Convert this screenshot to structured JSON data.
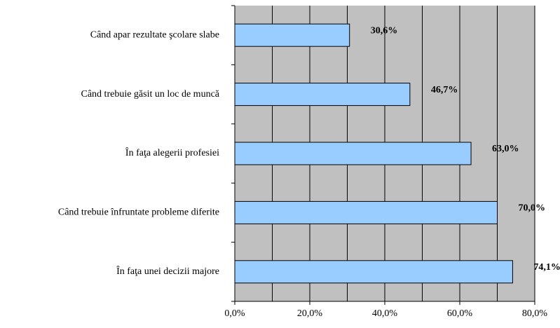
{
  "chart_data": {
    "type": "bar",
    "orientation": "horizontal",
    "categories": [
      "Când apar rezultate şcolare slabe",
      "Când trebuie găsit un loc de muncă",
      "În faţa alegerii profesiei",
      "Când trebuie înfruntate probleme diferite",
      "În faţa unei decizii majore"
    ],
    "values": [
      30.6,
      46.7,
      63.0,
      70.0,
      74.1
    ],
    "value_labels": [
      "30,6%",
      "46,7%",
      "63,0%",
      "70,0%",
      "74,1%"
    ],
    "color": "#99ccff",
    "background": "#c0c0c0",
    "xlim": [
      0,
      80
    ],
    "xticks": [
      {
        "value": 0,
        "label": "0,0%"
      },
      {
        "value": 20,
        "label": "20,0%"
      },
      {
        "value": 40,
        "label": "40,0%"
      },
      {
        "value": 60,
        "label": "60,0%"
      },
      {
        "value": 80,
        "label": "80,0%"
      }
    ],
    "minor_xticks": [
      10,
      30,
      50,
      70
    ],
    "grid": true
  }
}
